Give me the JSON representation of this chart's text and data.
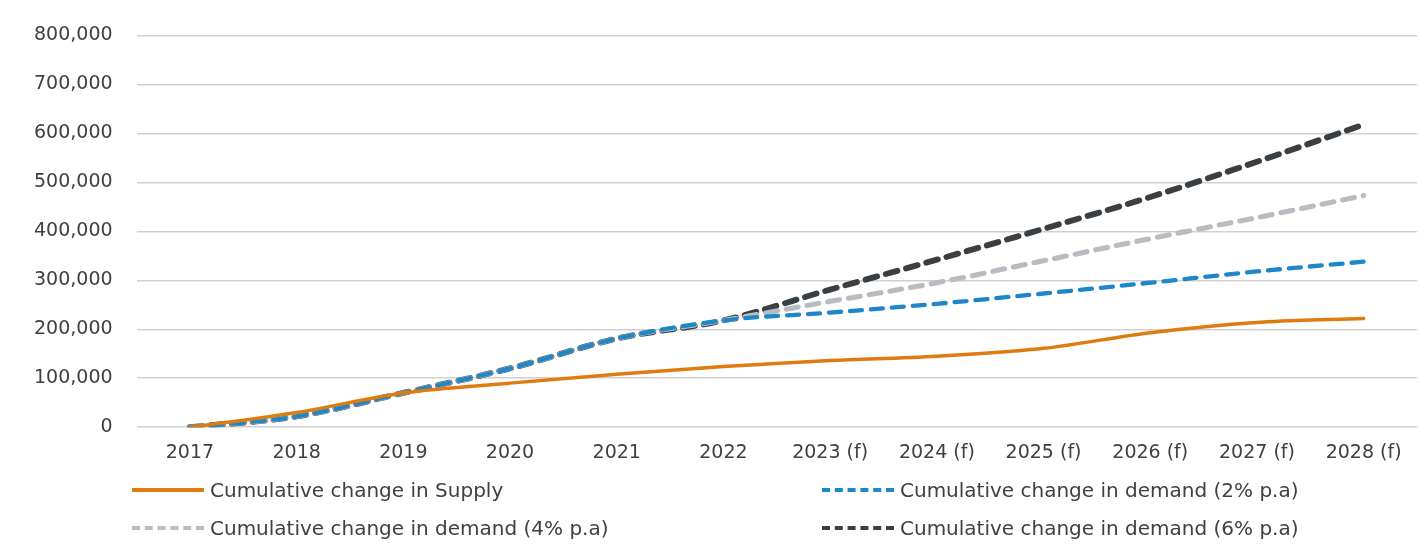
{
  "chart_data": {
    "type": "line",
    "categories": [
      "2017",
      "2018",
      "2019",
      "2020",
      "2021",
      "2022",
      "2023 (f)",
      "2024 (f)",
      "2025 (f)",
      "2026 (f)",
      "2027 (f)",
      "2028 (f)"
    ],
    "series": [
      {
        "name": "Cumulative change in Supply",
        "color": "#e07b10",
        "line_style": "solid",
        "values": [
          0,
          30000,
          70000,
          90000,
          108000,
          124000,
          136000,
          145000,
          161000,
          193000,
          214000,
          222000
        ]
      },
      {
        "name": "Cumulative change in demand (2% p.a)",
        "color": "#1f86c8",
        "line_style": "dashed",
        "values": [
          0,
          22000,
          70000,
          120000,
          181000,
          218000,
          234000,
          252000,
          273000,
          295000,
          318000,
          338000
        ]
      },
      {
        "name": "Cumulative change in demand (4% p.a)",
        "color": "#b8bcc1",
        "line_style": "dashed",
        "values": [
          0,
          22000,
          70000,
          120000,
          181000,
          218000,
          257000,
          295000,
          340000,
          385000,
          428000,
          473000
        ]
      },
      {
        "name": "Cumulative change in demand (6% p.a)",
        "color": "#3a3f44",
        "line_style": "dashed",
        "values": [
          0,
          22000,
          70000,
          120000,
          181000,
          218000,
          281000,
          342000,
          405000,
          470000,
          542000,
          618000
        ]
      }
    ],
    "ylim": [
      0,
      800000
    ],
    "yticks": [
      0,
      {
        "value": 100000,
        "label": "100,000"
      },
      {
        "value": 200000,
        "label": "200,000"
      },
      {
        "value": 300000,
        "label": "300,000"
      },
      {
        "value": 400000,
        "label": "400,000"
      },
      {
        "value": 500000,
        "label": "500,000"
      },
      {
        "value": 600000,
        "label": "600,000"
      },
      {
        "value": 700000,
        "label": "700,000"
      },
      {
        "value": 800000,
        "label": "800,000"
      }
    ],
    "grid": "y",
    "legend": "bottom",
    "marker": "none"
  }
}
